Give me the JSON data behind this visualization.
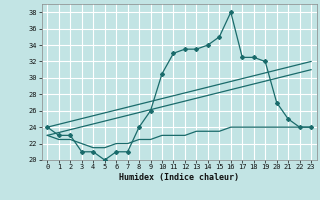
{
  "xlabel": "Humidex (Indice chaleur)",
  "xlim": [
    -0.5,
    23.5
  ],
  "ylim": [
    20,
    39
  ],
  "yticks": [
    20,
    22,
    24,
    26,
    28,
    30,
    32,
    34,
    36,
    38
  ],
  "xticks": [
    0,
    1,
    2,
    3,
    4,
    5,
    6,
    7,
    8,
    9,
    10,
    11,
    12,
    13,
    14,
    15,
    16,
    17,
    18,
    19,
    20,
    21,
    22,
    23
  ],
  "bg_color": "#c2e4e4",
  "grid_color": "#ffffff",
  "line_color": "#1a6b6b",
  "line1_x": [
    0,
    1,
    2,
    3,
    4,
    5,
    6,
    7,
    8,
    9,
    10,
    11,
    12,
    13,
    14,
    15,
    16,
    17,
    18,
    19,
    20,
    21,
    22,
    23
  ],
  "line1_y": [
    24,
    23,
    23,
    21,
    21,
    20,
    21,
    21,
    24,
    26,
    30.5,
    33,
    33.5,
    33.5,
    34,
    35,
    38,
    32.5,
    32.5,
    32,
    27,
    25,
    24,
    24
  ],
  "line2_x": [
    0,
    23
  ],
  "line2_y": [
    24,
    32
  ],
  "line3_x": [
    0,
    23
  ],
  "line3_y": [
    23,
    31
  ],
  "line4_x": [
    0,
    1,
    2,
    3,
    4,
    5,
    6,
    7,
    8,
    9,
    10,
    11,
    12,
    13,
    14,
    15,
    16,
    17,
    18,
    19,
    20,
    21,
    22,
    23
  ],
  "line4_y": [
    23,
    22.5,
    22.5,
    22,
    21.5,
    21.5,
    22,
    22,
    22.5,
    22.5,
    23,
    23,
    23,
    23.5,
    23.5,
    23.5,
    24,
    24,
    24,
    24,
    24,
    24,
    24,
    24
  ]
}
